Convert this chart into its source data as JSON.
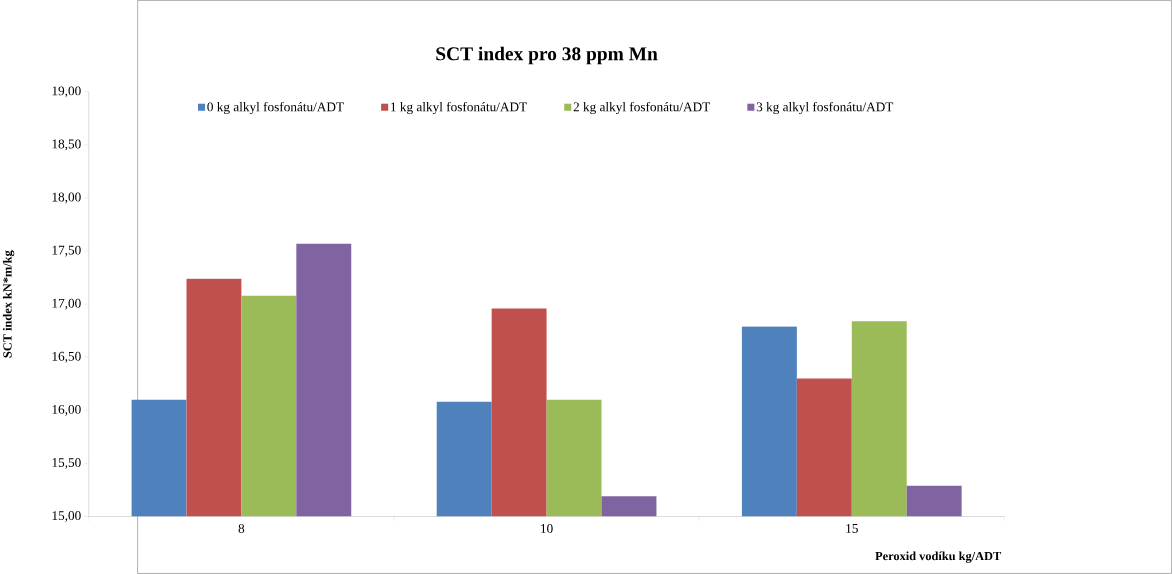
{
  "chart_data": {
    "type": "bar",
    "title": "SCT index pro 38 ppm Mn",
    "xlabel": "Peroxid vodíku kg/ADT",
    "ylabel": "SCT index kN*m/kg",
    "categories": [
      "8",
      "10",
      "15"
    ],
    "series": [
      {
        "name": "0 kg alkyl fosfonátu/ADT",
        "color": "#4f81bd",
        "values": [
          16.1,
          16.08,
          16.79
        ]
      },
      {
        "name": "1 kg alkyl fosfonátu/ADT",
        "color": "#c0504d",
        "values": [
          17.24,
          16.96,
          16.3
        ]
      },
      {
        "name": "2 kg alkyl fosfonátu/ADT",
        "color": "#9bbb59",
        "values": [
          17.08,
          16.1,
          16.84
        ]
      },
      {
        "name": "3 kg alkyl fosfonátu/ADT",
        "color": "#8064a2",
        "values": [
          17.57,
          15.19,
          15.29
        ]
      }
    ],
    "ylim": [
      15,
      19
    ],
    "yticks": [
      {
        "value": 15,
        "label": "15,00"
      },
      {
        "value": 15.5,
        "label": "15,50"
      },
      {
        "value": 16,
        "label": "16,00"
      },
      {
        "value": 16.5,
        "label": "16,50"
      },
      {
        "value": 17,
        "label": "17,00"
      },
      {
        "value": 17.5,
        "label": "17,50"
      },
      {
        "value": 18,
        "label": "18,00"
      },
      {
        "value": 18.5,
        "label": "18,50"
      },
      {
        "value": 19,
        "label": "19,00"
      }
    ],
    "grid": false,
    "legend": "top"
  }
}
